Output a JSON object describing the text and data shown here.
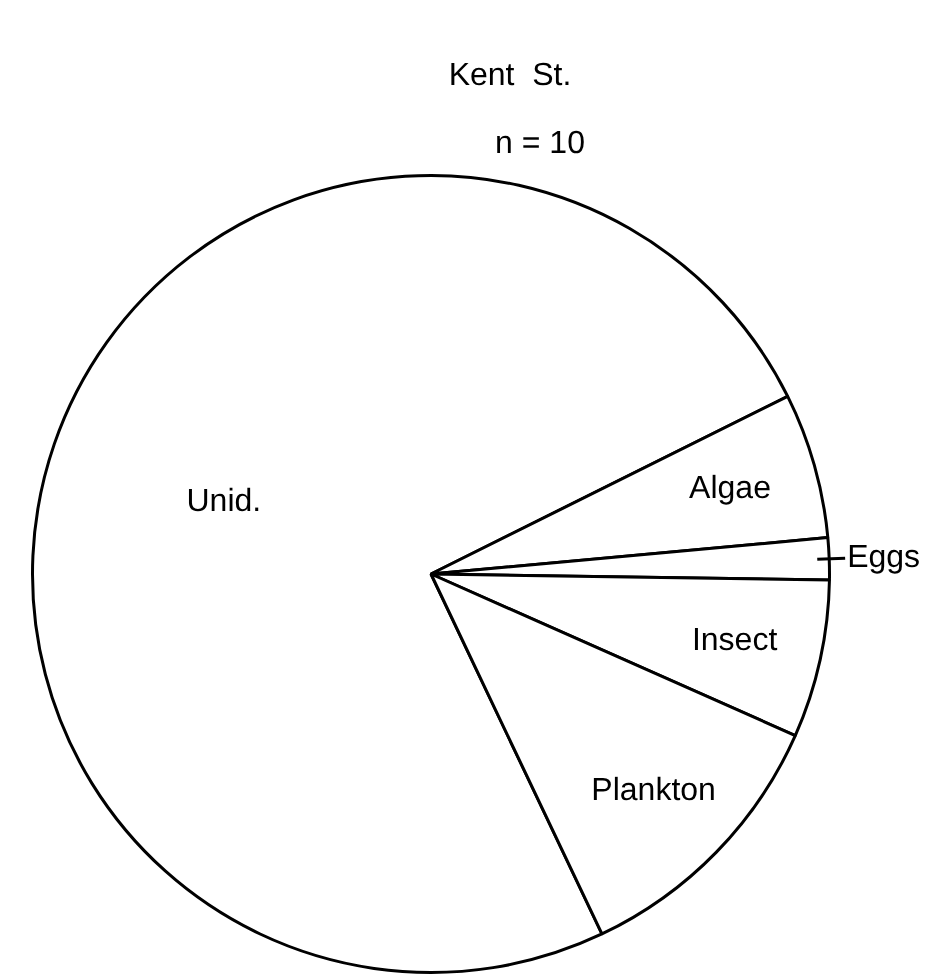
{
  "chart_data": {
    "type": "pie",
    "title": "Kent  St.",
    "subtitle": "n = 10",
    "categories": [
      "Unid.",
      "Algae",
      "Eggs",
      "Insect",
      "Plankton"
    ],
    "values": [
      74.7,
      5.9,
      1.7,
      6.4,
      11.3
    ],
    "colors": [
      "#ffffff",
      "#ffffff",
      "#ffffff",
      "#ffffff",
      "#ffffff"
    ],
    "legend": false
  }
}
